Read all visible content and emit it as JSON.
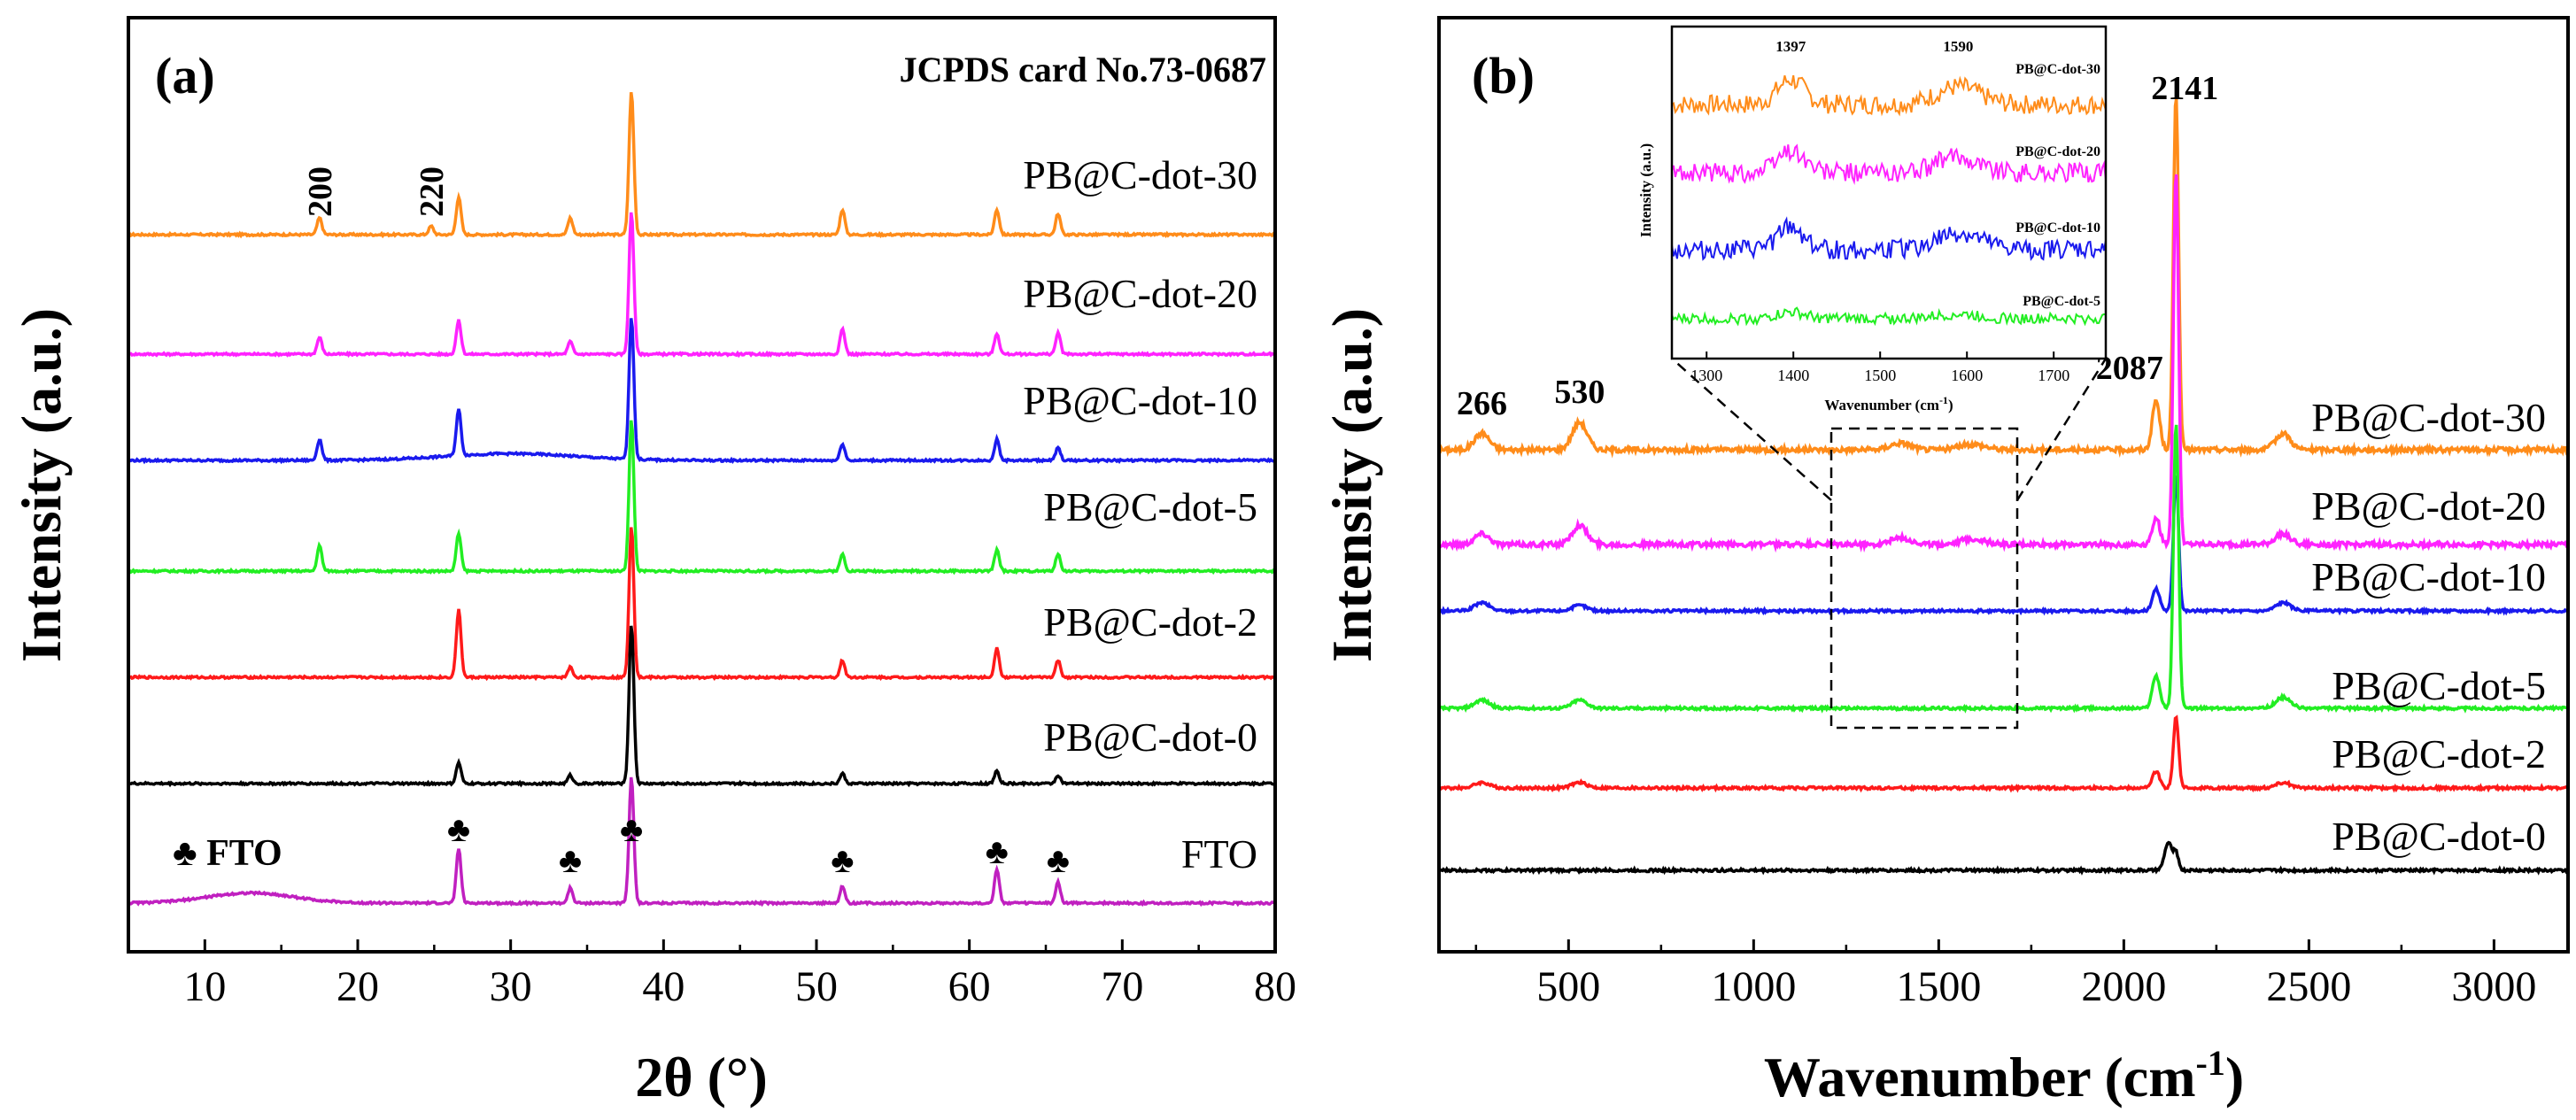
{
  "chart_data": [
    {
      "panel": "(a)",
      "type": "line",
      "xlabel": "2θ (°)",
      "ylabel": "Intensity (a.u.)",
      "xlim": [
        5,
        80
      ],
      "xticks": [
        10,
        20,
        30,
        40,
        50,
        60,
        70,
        80
      ],
      "annotation": "JCPDS card No.73-0687",
      "legend_note": "♣ FTO",
      "plane_labels": [
        {
          "text": "200",
          "x": 17.5
        },
        {
          "text": "220",
          "x": 24.8
        }
      ],
      "fto_markers": [
        26.6,
        33.9,
        37.9,
        51.7,
        61.8,
        65.8
      ],
      "series": [
        {
          "name": "PB@C-dot-30",
          "color": "#ff8c1a",
          "peaks": [
            [
              17.5,
              0.2
            ],
            [
              24.8,
              0.1
            ],
            [
              26.6,
              0.45
            ],
            [
              33.9,
              0.2
            ],
            [
              37.9,
              1.7
            ],
            [
              51.7,
              0.3
            ],
            [
              61.8,
              0.3
            ],
            [
              65.8,
              0.25
            ]
          ]
        },
        {
          "name": "PB@C-dot-20",
          "color": "#ff22ff",
          "peaks": [
            [
              17.5,
              0.2
            ],
            [
              26.6,
              0.4
            ],
            [
              33.9,
              0.15
            ],
            [
              37.9,
              1.7
            ],
            [
              51.7,
              0.3
            ],
            [
              61.8,
              0.25
            ],
            [
              65.8,
              0.25
            ]
          ]
        },
        {
          "name": "PB@C-dot-10",
          "color": "#1a1aee",
          "peaks": [
            [
              17.5,
              0.25
            ],
            [
              26.6,
              0.55
            ],
            [
              37.9,
              1.7
            ],
            [
              51.7,
              0.2
            ],
            [
              61.8,
              0.25
            ],
            [
              65.8,
              0.15
            ]
          ]
        },
        {
          "name": "PB@C-dot-5",
          "color": "#22ee22",
          "peaks": [
            [
              17.5,
              0.3
            ],
            [
              26.6,
              0.45
            ],
            [
              37.9,
              1.8
            ],
            [
              51.7,
              0.2
            ],
            [
              61.8,
              0.25
            ],
            [
              65.8,
              0.2
            ]
          ]
        },
        {
          "name": "PB@C-dot-2",
          "color": "#ff1a1a",
          "peaks": [
            [
              26.6,
              0.8
            ],
            [
              33.9,
              0.12
            ],
            [
              37.9,
              1.8
            ],
            [
              51.7,
              0.2
            ],
            [
              61.8,
              0.35
            ],
            [
              65.8,
              0.2
            ]
          ]
        },
        {
          "name": "PB@C-dot-0",
          "color": "#000000",
          "peaks": [
            [
              26.6,
              0.25
            ],
            [
              33.9,
              0.1
            ],
            [
              37.9,
              1.9
            ],
            [
              51.7,
              0.12
            ],
            [
              61.8,
              0.15
            ],
            [
              65.8,
              0.1
            ]
          ]
        },
        {
          "name": "FTO",
          "color": "#c020c0",
          "peaks": [
            [
              26.6,
              0.65
            ],
            [
              33.9,
              0.18
            ],
            [
              37.9,
              1.5
            ],
            [
              51.7,
              0.2
            ],
            [
              61.8,
              0.4
            ],
            [
              65.8,
              0.25
            ]
          ]
        }
      ]
    },
    {
      "panel": "(b)",
      "type": "line",
      "xlabel": "Wavenumber (cm",
      "xlabel_sup": "-1",
      "xlabel_end": ")",
      "ylabel": "Intensity (a.u.)",
      "xlim": [
        150,
        3200
      ],
      "xticks": [
        500,
        1000,
        1500,
        2000,
        2500,
        3000
      ],
      "peak_labels": [
        {
          "text": "266",
          "x": 266
        },
        {
          "text": "530",
          "x": 530
        },
        {
          "text": "2087",
          "x": 2087
        },
        {
          "text": "2141",
          "x": 2141
        }
      ],
      "series": [
        {
          "name": "PB@C-dot-30",
          "color": "#ff8c1a",
          "peaks": [
            [
              266,
              0.3
            ],
            [
              530,
              0.5
            ],
            [
              2087,
              0.9
            ],
            [
              2141,
              6.5
            ],
            [
              2430,
              0.3
            ]
          ]
        },
        {
          "name": "PB@C-dot-20",
          "color": "#ff22ff",
          "peaks": [
            [
              266,
              0.2
            ],
            [
              530,
              0.35
            ],
            [
              2087,
              0.5
            ],
            [
              2141,
              6.8
            ],
            [
              2430,
              0.2
            ]
          ]
        },
        {
          "name": "PB@C-dot-10",
          "color": "#1a1aee",
          "peaks": [
            [
              266,
              0.15
            ],
            [
              530,
              0.1
            ],
            [
              2087,
              0.4
            ],
            [
              2141,
              2.5
            ],
            [
              2430,
              0.15
            ]
          ]
        },
        {
          "name": "PB@C-dot-5",
          "color": "#22ee22",
          "peaks": [
            [
              266,
              0.15
            ],
            [
              530,
              0.15
            ],
            [
              2087,
              0.6
            ],
            [
              2141,
              5.2
            ],
            [
              2430,
              0.2
            ]
          ]
        },
        {
          "name": "PB@C-dot-2",
          "color": "#ff1a1a",
          "peaks": [
            [
              266,
              0.1
            ],
            [
              530,
              0.1
            ],
            [
              2087,
              0.3
            ],
            [
              2141,
              1.3
            ],
            [
              2430,
              0.1
            ]
          ]
        },
        {
          "name": "PB@C-dot-0",
          "color": "#000000",
          "peaks": [
            [
              2120,
              0.5
            ],
            [
              2141,
              0.3
            ]
          ]
        }
      ],
      "inset": {
        "xlabel": "Wavenumber (cm",
        "xlabel_sup": "-1",
        "xlabel_end": ")",
        "ylabel": "Intensity (a.u.)",
        "xlim": [
          1260,
          1760
        ],
        "xticks": [
          1300,
          1400,
          1500,
          1600,
          1700
        ],
        "peak_labels": [
          {
            "text": "1397",
            "x": 1397
          },
          {
            "text": "1590",
            "x": 1590
          }
        ],
        "series": [
          {
            "name": "PB@C-dot-30",
            "color": "#ff8c1a"
          },
          {
            "name": "PB@C-dot-20",
            "color": "#ff22ff"
          },
          {
            "name": "PB@C-dot-10",
            "color": "#1a1aee"
          },
          {
            "name": "PB@C-dot-5",
            "color": "#22ee22"
          }
        ]
      }
    }
  ]
}
